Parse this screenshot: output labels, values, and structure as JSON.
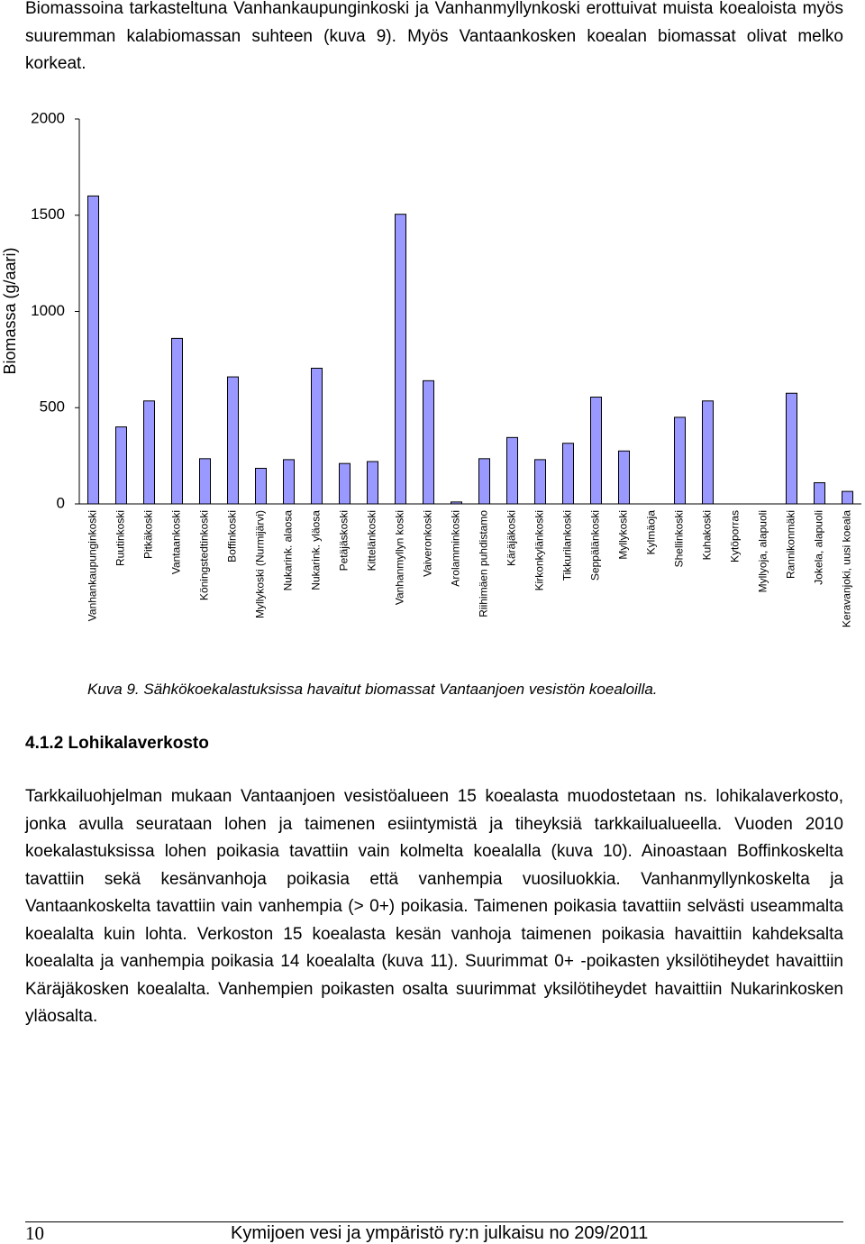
{
  "intro": "Biomassoina tarkasteltuna Vanhankaupunginkoski ja Vanhanmyllynkoski erottuivat muista koealoista myös suuremman kalabiomassan suhteen (kuva 9). Myös Vantaankosken koealan biomassat olivat melko korkeat.",
  "chart_data": {
    "type": "bar",
    "ylabel": "Biomassa (g/aari)",
    "categories": [
      "Vanhankaupunginkoski",
      "Ruutinkoski",
      "Pitkäkoski",
      "Vantaankoski",
      "Köningstedtinkoski",
      "Boffinkoski",
      "Myllykoski (Nurmijärvi)",
      "Nukarink. alaosa",
      "Nukarink. yläosa",
      "Petäjäskoski",
      "Kittelänkoski",
      "Vanhanmyllyn koski",
      "Vaiveronkoski",
      "Arolamminkoski",
      "Riihimäen puhdistamo",
      "Käräjäkoski",
      "Kirkonkylänkoski",
      "Tikkurilankoski",
      "Seppälänkoski",
      "Myllykoski",
      "Kylmäoja",
      "Shellinkoski",
      "Kuhakoski",
      "Kytöporras",
      "Myllyoja, alapuoli",
      "Rannikonmäki",
      "Jokela, alapuoli",
      "Keravanjoki, uusi koeala"
    ],
    "values": [
      1600,
      400,
      535,
      860,
      235,
      660,
      185,
      230,
      705,
      210,
      220,
      1505,
      640,
      10,
      235,
      345,
      230,
      315,
      555,
      275,
      0,
      450,
      535,
      0,
      0,
      575,
      110,
      65
    ],
    "color": "#9999ff",
    "ylim": [
      0,
      2000
    ],
    "yticks": [
      0,
      500,
      1000,
      1500,
      2000
    ]
  },
  "caption": "Kuva 9. Sähkökoekalastuksissa havaitut biomassat Vantaanjoen vesistön koealoilla.",
  "heading": "4.1.2 Lohikalaverkosto",
  "body": "Tarkkailuohjelman mukaan Vantaanjoen vesistöalueen 15 koealasta muodostetaan ns. lohikalaverkosto, jonka avulla seurataan lohen ja taimenen esiintymistä ja tiheyksiä tarkkailualueella. Vuoden 2010 koekalastuksissa lohen poikasia tavattiin vain kolmelta koealalla (kuva 10). Ainoastaan Boffinkoskelta tavattiin sekä kesänvanhoja poikasia että vanhempia vuosiluokkia. Vanhanmyllynkoskelta ja Vantaankoskelta tavattiin vain vanhempia (> 0+) poikasia. Taimenen poikasia tavattiin selvästi useammalta koealalta kuin lohta. Verkoston 15 koealasta kesän vanhoja taimenen poikasia havaittiin kahdeksalta koealalta ja vanhempia poikasia 14 koealalta (kuva 11). Suurimmat 0+ -poikasten yksilötiheydet havaittiin Käräjäkosken koealalta. Vanhempien poikasten osalta suurimmat yksilötiheydet havaittiin Nukarinkosken yläosalta.",
  "footer": {
    "page": "10",
    "publication": "Kymijoen vesi ja ympäristö ry:n julkaisu no 209/2011"
  }
}
